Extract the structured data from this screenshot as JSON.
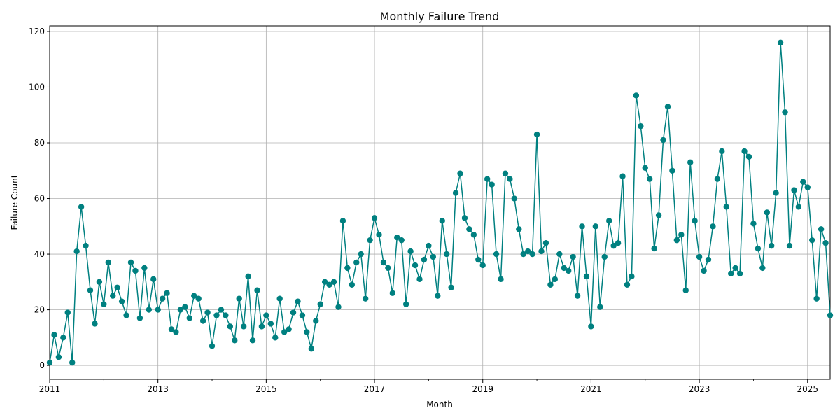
{
  "chart_data": {
    "type": "line",
    "title": "Monthly Failure Trend",
    "xlabel": "Month",
    "ylabel": "Failure Count",
    "grid": true,
    "legend": "none",
    "x_start": "2011-01",
    "xlim": [
      "2011-01",
      "2025-06"
    ],
    "ylim": [
      -5,
      122
    ],
    "x_ticks": [
      "2011",
      "2013",
      "2015",
      "2017",
      "2019",
      "2021",
      "2023",
      "2025"
    ],
    "y_ticks": [
      0,
      20,
      40,
      60,
      80,
      100,
      120
    ],
    "series": [
      {
        "color": "#008080",
        "marker": "circle",
        "x": [
          "2011-01",
          "2011-02",
          "2011-03",
          "2011-04",
          "2011-05",
          "2011-06",
          "2011-07",
          "2011-08",
          "2011-09",
          "2011-10",
          "2011-11",
          "2011-12",
          "2012-01",
          "2012-02",
          "2012-03",
          "2012-04",
          "2012-05",
          "2012-06",
          "2012-07",
          "2012-08",
          "2012-09",
          "2012-10",
          "2012-11",
          "2012-12",
          "2013-01",
          "2013-02",
          "2013-03",
          "2013-04",
          "2013-05",
          "2013-06",
          "2013-07",
          "2013-08",
          "2013-09",
          "2013-10",
          "2013-11",
          "2013-12",
          "2014-01",
          "2014-02",
          "2014-03",
          "2014-04",
          "2014-05",
          "2014-06",
          "2014-07",
          "2014-08",
          "2014-09",
          "2014-10",
          "2014-11",
          "2014-12",
          "2015-01",
          "2015-02",
          "2015-03",
          "2015-04",
          "2015-05",
          "2015-06",
          "2015-07",
          "2015-08",
          "2015-09",
          "2015-10",
          "2015-11",
          "2015-12",
          "2016-01",
          "2016-02",
          "2016-03",
          "2016-04",
          "2016-05",
          "2016-06",
          "2016-07",
          "2016-08",
          "2016-09",
          "2016-10",
          "2016-11",
          "2016-12",
          "2017-01",
          "2017-02",
          "2017-03",
          "2017-04",
          "2017-05",
          "2017-06",
          "2017-07",
          "2017-08",
          "2017-09",
          "2017-10",
          "2017-11",
          "2017-12",
          "2018-01",
          "2018-02",
          "2018-03",
          "2018-04",
          "2018-05",
          "2018-06",
          "2018-07",
          "2018-08",
          "2018-09",
          "2018-10",
          "2018-11",
          "2018-12",
          "2019-01",
          "2019-02",
          "2019-03",
          "2019-04",
          "2019-05",
          "2019-06",
          "2019-07",
          "2019-08",
          "2019-09",
          "2019-10",
          "2019-11",
          "2019-12",
          "2020-01",
          "2020-02",
          "2020-03",
          "2020-04",
          "2020-05",
          "2020-06",
          "2020-07",
          "2020-08",
          "2020-09",
          "2020-10",
          "2020-11",
          "2020-12",
          "2021-01",
          "2021-02",
          "2021-03",
          "2021-04",
          "2021-05",
          "2021-06",
          "2021-07",
          "2021-08",
          "2021-09",
          "2021-10",
          "2021-11",
          "2021-12",
          "2022-01",
          "2022-02",
          "2022-03",
          "2022-04",
          "2022-05",
          "2022-06",
          "2022-07",
          "2022-08",
          "2022-09",
          "2022-10",
          "2022-11",
          "2022-12",
          "2023-01",
          "2023-02",
          "2023-03",
          "2023-04",
          "2023-05",
          "2023-06",
          "2023-07",
          "2023-08",
          "2023-09",
          "2023-10",
          "2023-11",
          "2023-12",
          "2024-01",
          "2024-02",
          "2024-03",
          "2024-04",
          "2024-05",
          "2024-06",
          "2024-07",
          "2024-08",
          "2024-09",
          "2024-10",
          "2024-11",
          "2024-12",
          "2025-01",
          "2025-02",
          "2025-03",
          "2025-04",
          "2025-05",
          "2025-06"
        ],
        "values": [
          1,
          11,
          3,
          10,
          19,
          1,
          41,
          57,
          43,
          27,
          15,
          30,
          22,
          37,
          25,
          28,
          23,
          18,
          37,
          34,
          17,
          35,
          20,
          31,
          20,
          24,
          26,
          13,
          12,
          20,
          21,
          17,
          25,
          24,
          16,
          19,
          7,
          18,
          20,
          18,
          14,
          9,
          24,
          14,
          32,
          9,
          27,
          14,
          18,
          15,
          10,
          24,
          12,
          13,
          19,
          23,
          18,
          12,
          6,
          16,
          22,
          30,
          29,
          30,
          21,
          52,
          35,
          29,
          37,
          40,
          24,
          45,
          53,
          47,
          37,
          35,
          26,
          46,
          45,
          22,
          41,
          36,
          31,
          38,
          43,
          39,
          25,
          52,
          40,
          28,
          62,
          69,
          53,
          49,
          47,
          38,
          36,
          67,
          65,
          40,
          31,
          69,
          67,
          60,
          49,
          40,
          41,
          40,
          83,
          41,
          44,
          29,
          31,
          40,
          35,
          34,
          39,
          25,
          50,
          32,
          14,
          50,
          21,
          39,
          52,
          43,
          44,
          68,
          29,
          32,
          97,
          86,
          71,
          67,
          42,
          54,
          81,
          93,
          70,
          45,
          47,
          27,
          73,
          52,
          39,
          34,
          38,
          50,
          67,
          77,
          57,
          33,
          35,
          33,
          77,
          75,
          51,
          42,
          35,
          55,
          43,
          62,
          116,
          91,
          43,
          63,
          57,
          66,
          64,
          45,
          24,
          49,
          44,
          18
        ]
      }
    ]
  }
}
